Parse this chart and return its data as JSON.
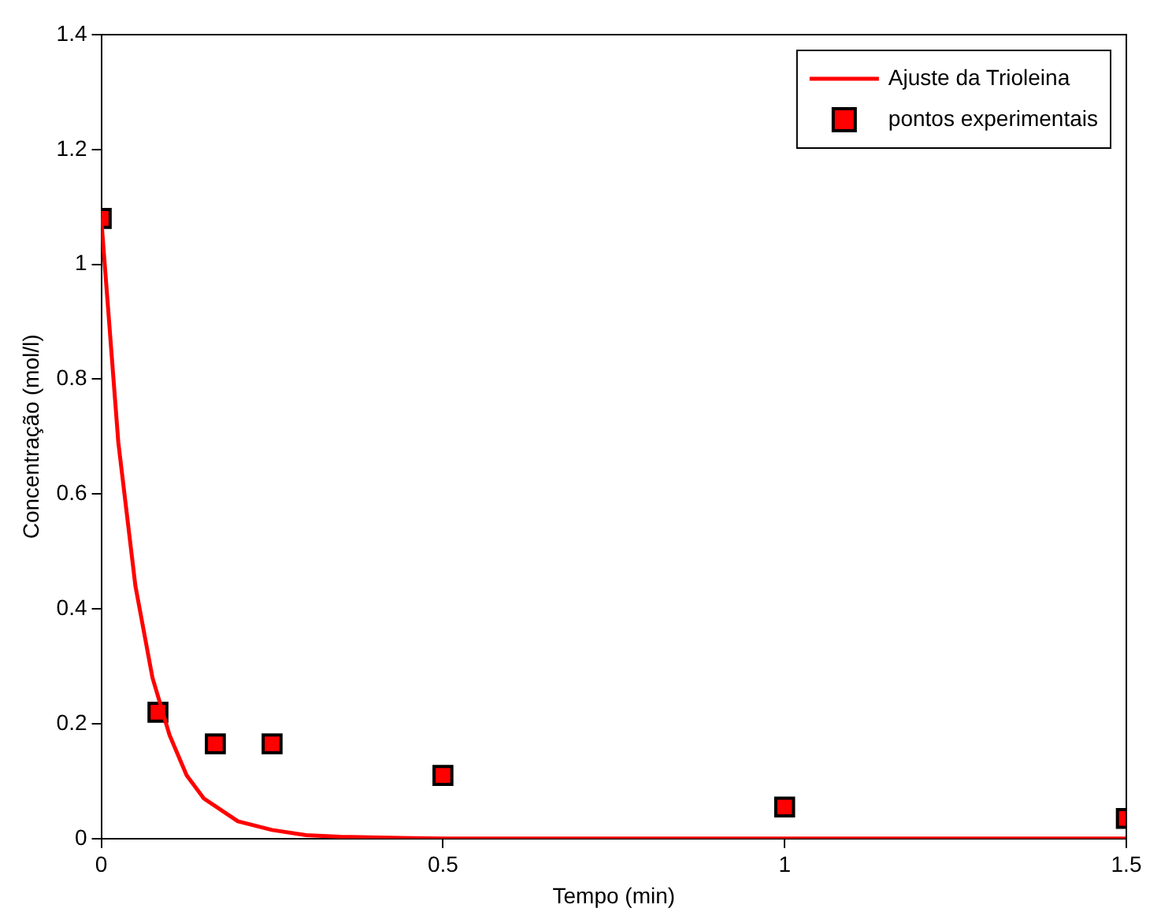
{
  "chart_data": {
    "type": "scatter",
    "xlabel": "Tempo (min)",
    "ylabel": "Concentração (mol/l)",
    "xlim": [
      0,
      1.5
    ],
    "xticks": [
      0,
      0.5,
      1,
      1.5
    ],
    "ylim": [
      0,
      1.4
    ],
    "yticks": [
      0,
      0.2,
      0.4,
      0.6,
      0.8,
      1,
      1.2,
      1.4
    ],
    "grid": false,
    "legend": "top right",
    "marker": "square",
    "series": [
      {
        "name": "Ajuste da Trioleina",
        "type": "line",
        "color": "#ff0000",
        "marker": "none",
        "x": [
          0,
          0.025,
          0.05,
          0.075,
          0.1,
          0.125,
          0.15,
          0.2,
          0.25,
          0.3,
          0.35,
          0.5,
          1,
          1.5
        ],
        "values": [
          1.08,
          0.69,
          0.44,
          0.28,
          0.18,
          0.11,
          0.07,
          0.03,
          0.015,
          0.006,
          0.003,
          0,
          0,
          0
        ]
      },
      {
        "name": "pontos experimentais",
        "type": "scatter",
        "color": "#ff0000",
        "x": [
          0,
          0.083,
          0.167,
          0.25,
          0.5,
          1,
          1.5
        ],
        "values": [
          1.08,
          0.22,
          0.165,
          0.165,
          0.11,
          0.055,
          0.035
        ]
      }
    ]
  }
}
